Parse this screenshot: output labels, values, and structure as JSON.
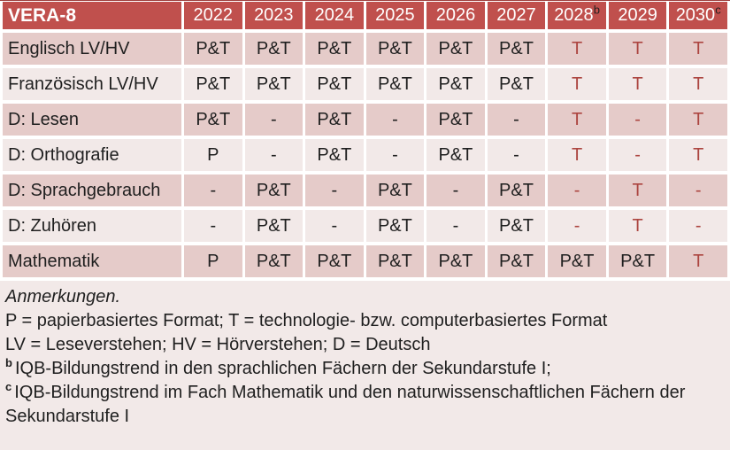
{
  "colors": {
    "header_bg": "#C0504D",
    "band_dark": "#E5CBC9",
    "band_light": "#F2E9E8",
    "accent_text": "#AC4540",
    "top_rule": "#9E3F3C",
    "body_text": "#1F1F1F",
    "header_text": "#FFFFFF"
  },
  "table": {
    "title_cell": "VERA-8",
    "columns": [
      {
        "year": "2022",
        "sup": ""
      },
      {
        "year": "2023",
        "sup": ""
      },
      {
        "year": "2024",
        "sup": ""
      },
      {
        "year": "2025",
        "sup": ""
      },
      {
        "year": "2026",
        "sup": ""
      },
      {
        "year": "2027",
        "sup": ""
      },
      {
        "year": "2028",
        "sup": "b"
      },
      {
        "year": "2029",
        "sup": ""
      },
      {
        "year": "2030",
        "sup": "c"
      }
    ],
    "rows": [
      {
        "label": "Englisch LV/HV",
        "cells": [
          {
            "text": "P&T",
            "red": false
          },
          {
            "text": "P&T",
            "red": false
          },
          {
            "text": "P&T",
            "red": false
          },
          {
            "text": "P&T",
            "red": false
          },
          {
            "text": "P&T",
            "red": false
          },
          {
            "text": "P&T",
            "red": false
          },
          {
            "text": "T",
            "red": true
          },
          {
            "text": "T",
            "red": true
          },
          {
            "text": "T",
            "red": true
          }
        ]
      },
      {
        "label": "Französisch LV/HV",
        "cells": [
          {
            "text": "P&T",
            "red": false
          },
          {
            "text": "P&T",
            "red": false
          },
          {
            "text": "P&T",
            "red": false
          },
          {
            "text": "P&T",
            "red": false
          },
          {
            "text": "P&T",
            "red": false
          },
          {
            "text": "P&T",
            "red": false
          },
          {
            "text": "T",
            "red": true
          },
          {
            "text": "T",
            "red": true
          },
          {
            "text": "T",
            "red": true
          }
        ]
      },
      {
        "label": "D: Lesen",
        "cells": [
          {
            "text": "P&T",
            "red": false
          },
          {
            "text": "-",
            "red": false
          },
          {
            "text": "P&T",
            "red": false
          },
          {
            "text": "-",
            "red": false
          },
          {
            "text": "P&T",
            "red": false
          },
          {
            "text": "-",
            "red": false
          },
          {
            "text": "T",
            "red": true
          },
          {
            "text": "-",
            "red": true
          },
          {
            "text": "T",
            "red": true
          }
        ]
      },
      {
        "label": "D: Orthografie",
        "cells": [
          {
            "text": "P",
            "red": false
          },
          {
            "text": "-",
            "red": false
          },
          {
            "text": "P&T",
            "red": false
          },
          {
            "text": "-",
            "red": false
          },
          {
            "text": "P&T",
            "red": false
          },
          {
            "text": "-",
            "red": false
          },
          {
            "text": "T",
            "red": true
          },
          {
            "text": "-",
            "red": true
          },
          {
            "text": "T",
            "red": true
          }
        ]
      },
      {
        "label": "D: Sprachgebrauch",
        "cells": [
          {
            "text": "-",
            "red": false
          },
          {
            "text": "P&T",
            "red": false
          },
          {
            "text": "-",
            "red": false
          },
          {
            "text": "P&T",
            "red": false
          },
          {
            "text": "-",
            "red": false
          },
          {
            "text": "P&T",
            "red": false
          },
          {
            "text": "-",
            "red": true
          },
          {
            "text": "T",
            "red": true
          },
          {
            "text": "-",
            "red": true
          }
        ]
      },
      {
        "label": "D: Zuhören",
        "cells": [
          {
            "text": "-",
            "red": false
          },
          {
            "text": "P&T",
            "red": false
          },
          {
            "text": "-",
            "red": false
          },
          {
            "text": "P&T",
            "red": false
          },
          {
            "text": "-",
            "red": false
          },
          {
            "text": "P&T",
            "red": false
          },
          {
            "text": "-",
            "red": true
          },
          {
            "text": "T",
            "red": true
          },
          {
            "text": "-",
            "red": true
          }
        ]
      },
      {
        "label": "Mathematik",
        "cells": [
          {
            "text": "P",
            "red": false
          },
          {
            "text": "P&T",
            "red": false
          },
          {
            "text": "P&T",
            "red": false
          },
          {
            "text": "P&T",
            "red": false
          },
          {
            "text": "P&T",
            "red": false
          },
          {
            "text": "P&T",
            "red": false
          },
          {
            "text": "P&T",
            "red": false
          },
          {
            "text": "P&T",
            "red": false
          },
          {
            "text": "T",
            "red": true
          }
        ]
      }
    ]
  },
  "notes": {
    "heading": "Anmerkungen.",
    "lines": [
      {
        "sup": "",
        "text": "P = papierbasiertes Format; T = technologie- bzw. computerbasiertes Format"
      },
      {
        "sup": "",
        "text": "LV = Leseverstehen; HV = Hörverstehen; D = Deutsch"
      },
      {
        "sup": "b",
        "text": "IQB-Bildungstrend in den sprachlichen Fächern der Sekundarstufe I;"
      },
      {
        "sup": "c",
        "text": "IQB-Bildungstrend im Fach Mathematik und den naturwissenschaftlichen Fächern der Sekundarstufe I"
      }
    ]
  }
}
